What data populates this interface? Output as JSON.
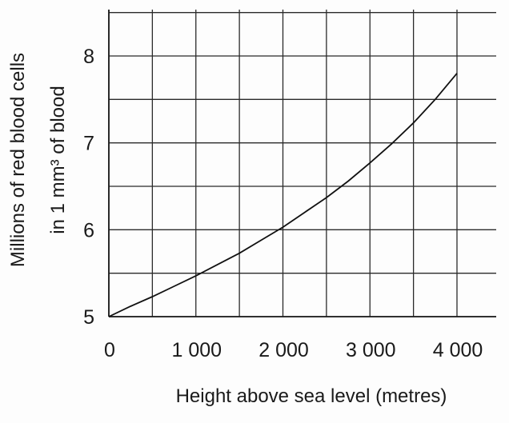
{
  "chart_data": {
    "type": "line",
    "title": "",
    "xlabel": "Height above sea level (metres)",
    "ylabel_line1": "Millions of red blood cells",
    "ylabel_line2": "in 1 mm³ of blood",
    "xlim": [
      0,
      4000
    ],
    "ylim": [
      5,
      8
    ],
    "grid": true,
    "x_ticks": [
      0,
      1000,
      2000,
      3000,
      4000
    ],
    "x_tick_labels": [
      "0",
      "1 000",
      "2 000",
      "3 000",
      "4 000"
    ],
    "y_ticks": [
      5,
      6,
      7,
      8
    ],
    "y_tick_labels": [
      "5",
      "6",
      "7",
      "8"
    ],
    "series": [
      {
        "x": [
          0,
          250,
          500,
          750,
          1000,
          1250,
          1500,
          1750,
          2000,
          2250,
          2500,
          2750,
          3000,
          3250,
          3500,
          3750,
          4000
        ],
        "y": [
          5.0,
          5.12,
          5.23,
          5.35,
          5.47,
          5.6,
          5.73,
          5.88,
          6.03,
          6.2,
          6.37,
          6.56,
          6.77,
          6.99,
          7.23,
          7.5,
          7.8
        ]
      }
    ],
    "colors": {
      "curve": "#111111",
      "grid": "#2a2a2a"
    }
  }
}
